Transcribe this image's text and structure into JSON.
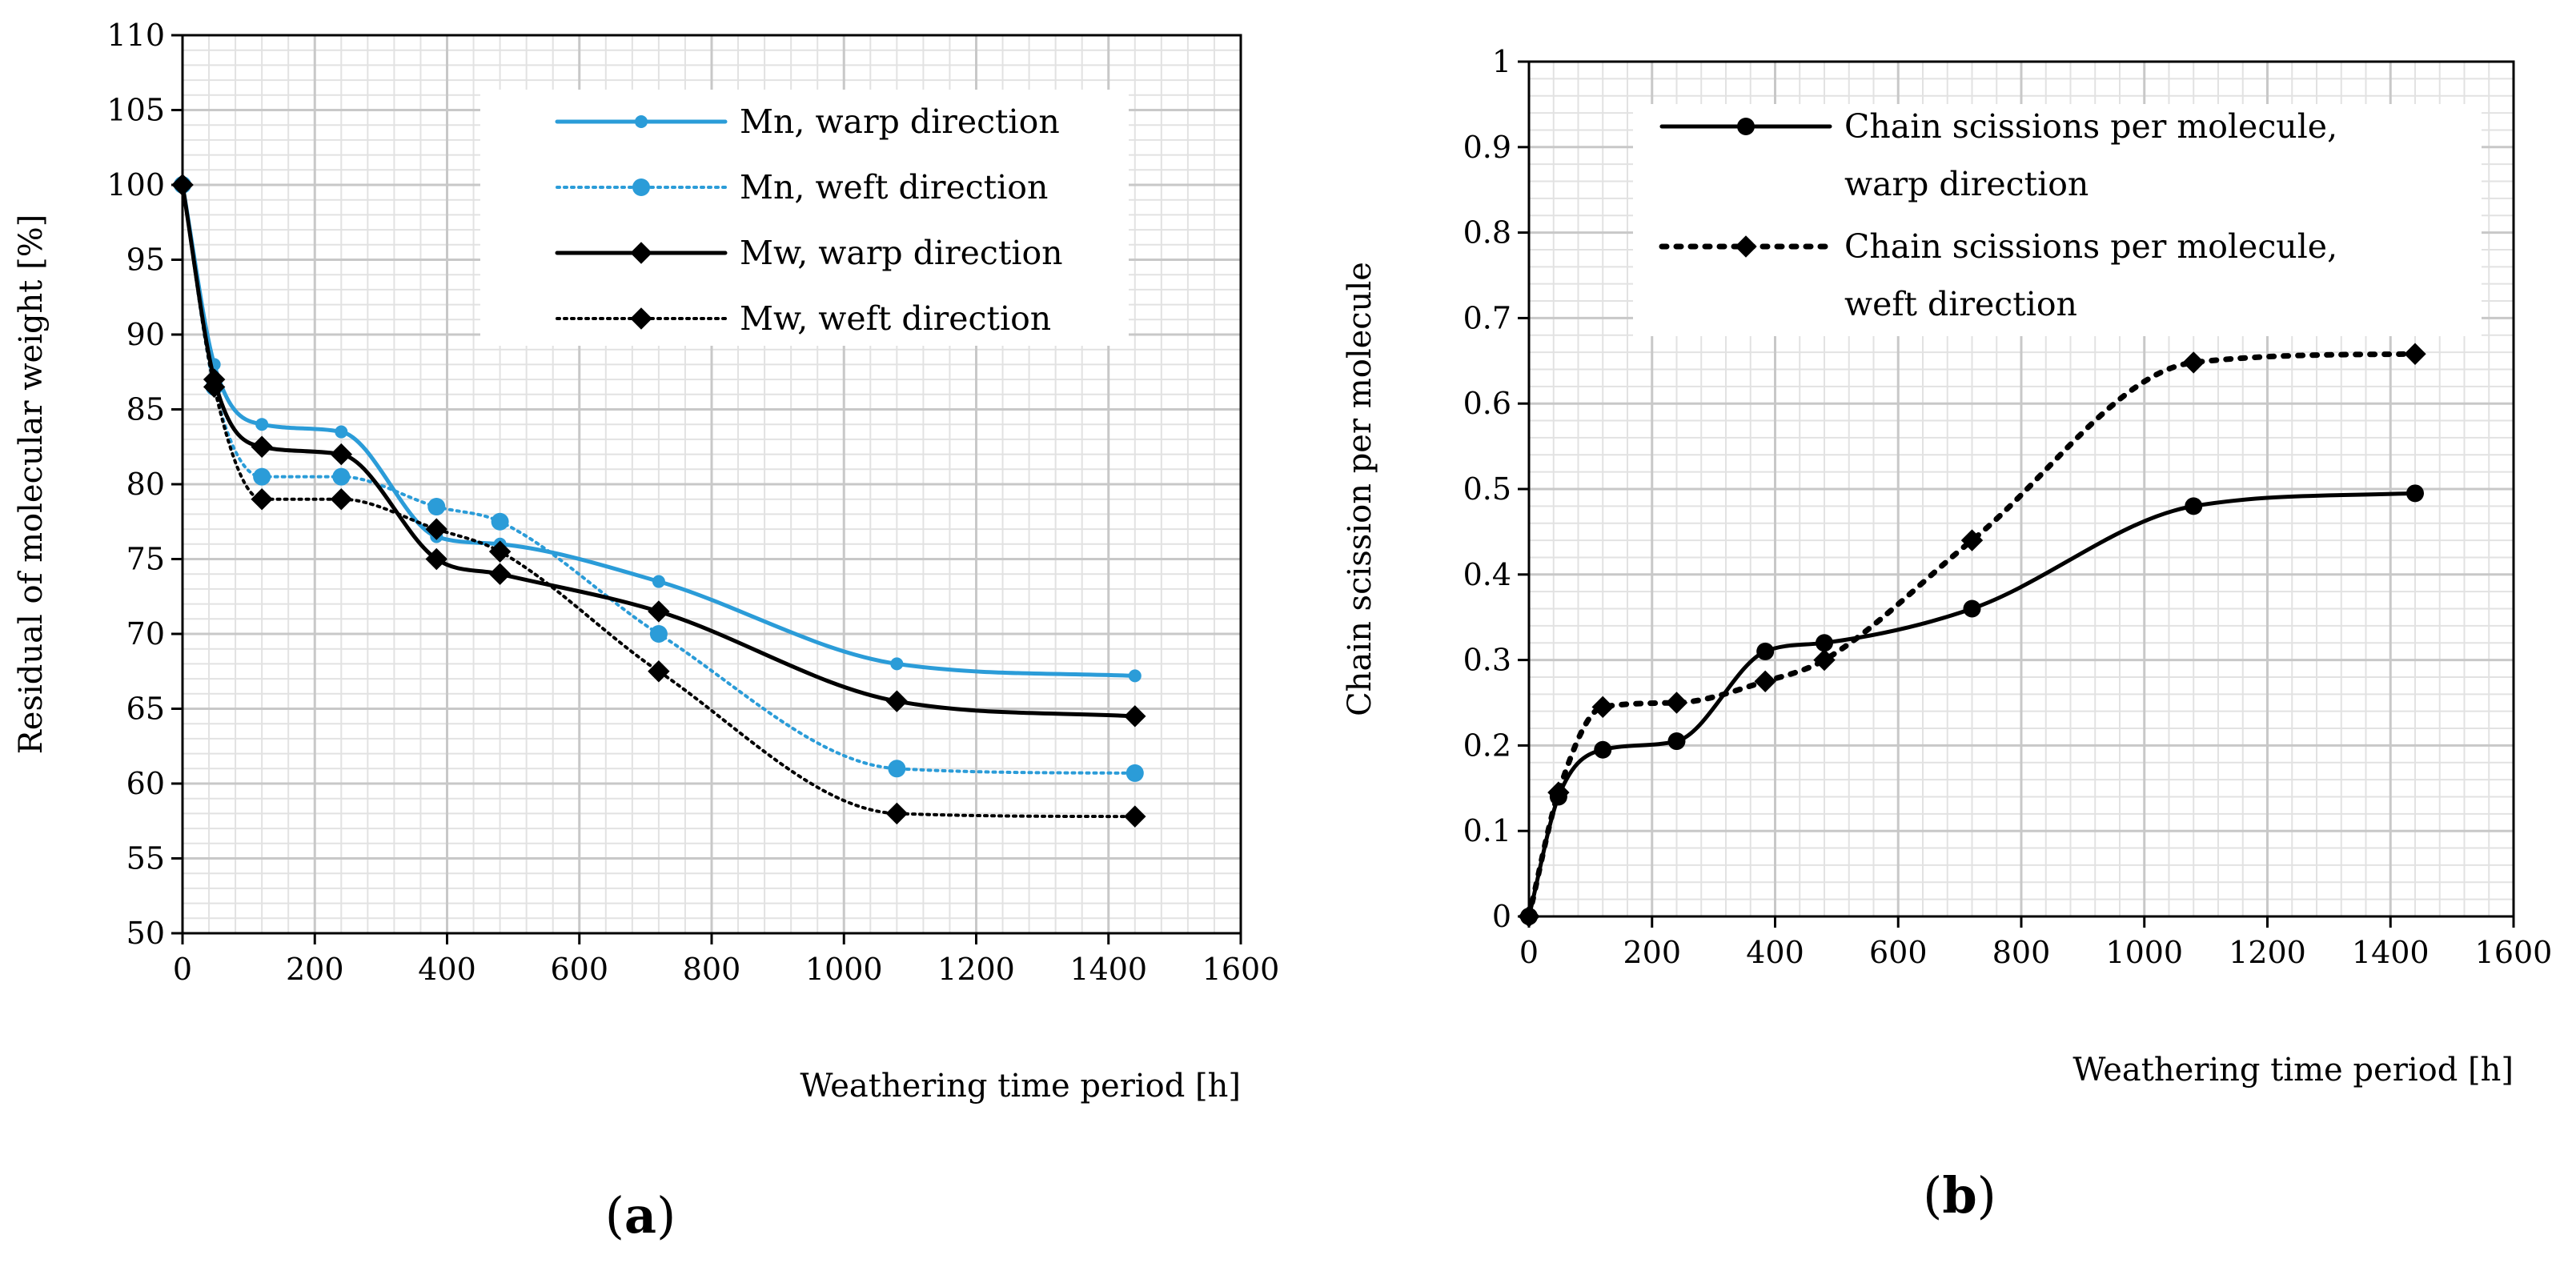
{
  "chart_data": [
    {
      "type": "line",
      "panel_label": "(a)",
      "panel_letter": "a",
      "xlabel": "Weathering time period [h]",
      "ylabel": "Residual of molecular weight [%]",
      "xlim": [
        0,
        1600
      ],
      "ylim": [
        50,
        110
      ],
      "xticks": [
        0,
        200,
        400,
        600,
        800,
        1000,
        1200,
        1400,
        1600
      ],
      "yticks": [
        50,
        55,
        60,
        65,
        70,
        75,
        80,
        85,
        90,
        95,
        100,
        105,
        110
      ],
      "grid": true,
      "legend_position": "top-right",
      "series": [
        {
          "name": "Mn, warp direction",
          "color": "#2b9cd8",
          "dash": "solid",
          "marker": "circle-small",
          "x": [
            0,
            48,
            120,
            240,
            384,
            480,
            720,
            1080,
            1440
          ],
          "y": [
            100,
            88,
            84,
            83.5,
            76.5,
            76,
            73.5,
            68,
            67.2
          ]
        },
        {
          "name": "Mn, weft direction",
          "color": "#2b9cd8",
          "dash": "dotted",
          "marker": "circle",
          "x": [
            0,
            48,
            120,
            240,
            384,
            480,
            720,
            1080,
            1440
          ],
          "y": [
            100,
            86.5,
            80.5,
            80.5,
            78.5,
            77.5,
            70,
            61,
            60.7
          ]
        },
        {
          "name": "Mw, warp direction",
          "color": "#000000",
          "dash": "solid",
          "marker": "diamond",
          "x": [
            0,
            48,
            120,
            240,
            384,
            480,
            720,
            1080,
            1440
          ],
          "y": [
            100,
            87,
            82.5,
            82,
            75,
            74,
            71.5,
            65.5,
            64.5
          ]
        },
        {
          "name": "Mw, weft direction",
          "color": "#000000",
          "dash": "dotted",
          "marker": "diamond",
          "x": [
            0,
            48,
            120,
            240,
            384,
            480,
            720,
            1080,
            1440
          ],
          "y": [
            100,
            86.5,
            79,
            79,
            77,
            75.5,
            67.5,
            58,
            57.8
          ]
        }
      ]
    },
    {
      "type": "line",
      "panel_label": "(b)",
      "panel_letter": "b",
      "xlabel": "Weathering time period [h]",
      "ylabel": "Chain scission per molecule",
      "xlim": [
        0,
        1600
      ],
      "ylim": [
        0,
        1
      ],
      "xticks": [
        0,
        200,
        400,
        600,
        800,
        1000,
        1200,
        1400,
        1600
      ],
      "yticks": [
        0,
        0.1,
        0.2,
        0.3,
        0.4,
        0.5,
        0.6,
        0.7,
        0.8,
        0.9,
        1
      ],
      "grid": true,
      "legend_position": "top-right",
      "series": [
        {
          "name": "Chain scissions per molecule, warp direction",
          "legend_lines": [
            "Chain scissions per molecule,",
            "warp direction"
          ],
          "color": "#000000",
          "dash": "solid",
          "marker": "circle",
          "x": [
            0,
            48,
            120,
            240,
            384,
            480,
            720,
            1080,
            1440
          ],
          "y": [
            0,
            0.14,
            0.195,
            0.205,
            0.31,
            0.32,
            0.36,
            0.48,
            0.495
          ]
        },
        {
          "name": "Chain scissions per molecule, weft direction",
          "legend_lines": [
            "Chain scissions per molecule,",
            "weft direction"
          ],
          "color": "#000000",
          "dash": "dotted-thick",
          "marker": "diamond",
          "x": [
            0,
            48,
            120,
            240,
            384,
            480,
            720,
            1080,
            1440
          ],
          "y": [
            0,
            0.145,
            0.245,
            0.25,
            0.275,
            0.3,
            0.44,
            0.648,
            0.658
          ]
        }
      ]
    }
  ]
}
